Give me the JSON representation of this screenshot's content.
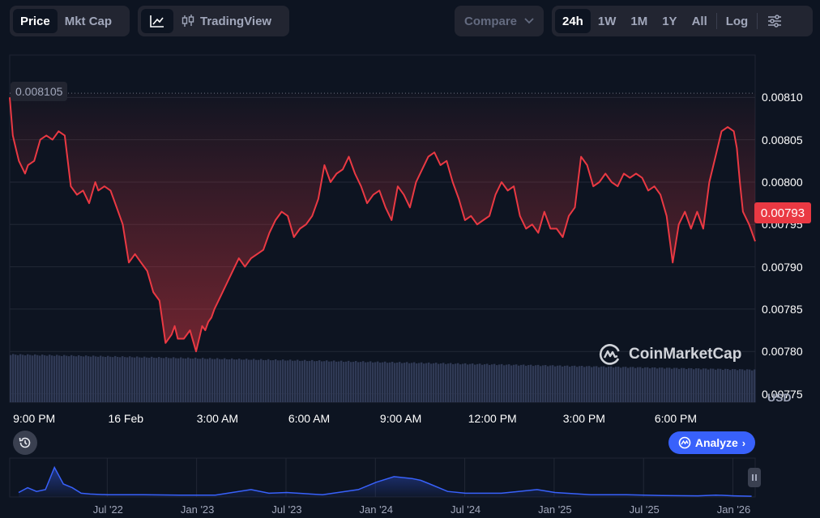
{
  "toolbar": {
    "metric_tabs": [
      "Price",
      "Mkt Cap"
    ],
    "tradingview_label": "TradingView",
    "compare_label": "Compare",
    "ranges": [
      "24h",
      "1W",
      "1M",
      "1Y",
      "All"
    ],
    "log_label": "Log"
  },
  "chart": {
    "watermark": "CoinMarketCap",
    "currency_label": "USD",
    "high_label": "0.008105",
    "current_price_label": "0.00793",
    "analyze_label": "Analyze",
    "colors": {
      "line": "#ea3943",
      "bg": "#0d1421",
      "volume": "#303a55",
      "overview": "#3861fb",
      "current_tag": "#ea3943"
    }
  },
  "chart_data": [
    {
      "type": "line",
      "x_tick_labels": [
        "9:00 PM",
        "16 Feb",
        "3:00 AM",
        "6:00 AM",
        "9:00 AM",
        "12:00 PM",
        "3:00 PM",
        "6:00 PM"
      ],
      "y_tick_labels": [
        "0.00810",
        "0.00805",
        "0.00800",
        "0.00795",
        "0.00790",
        "0.00785",
        "0.00780",
        "0.00775"
      ],
      "ylim": [
        0.00774,
        0.00815
      ],
      "x_range_hours": [
        -0.8,
        23.6
      ],
      "grid": true,
      "high_reference": 0.008105,
      "current": 0.00793,
      "series": [
        {
          "x": [
            -0.8,
            -0.7,
            -0.6,
            -0.5,
            -0.3,
            -0.2,
            0,
            0.2,
            0.4,
            0.6,
            0.8,
            1.0,
            1.2,
            1.4,
            1.6,
            1.8,
            2.0,
            2.1,
            2.3,
            2.5,
            2.7,
            2.9,
            3.1,
            3.3,
            3.5,
            3.7,
            3.9,
            4.1,
            4.3,
            4.5,
            4.6,
            4.7,
            4.9,
            5.1,
            5.3,
            5.5,
            5.6,
            5.7,
            5.8,
            5.9,
            6.1,
            6.3,
            6.5,
            6.7,
            6.9,
            7.1,
            7.3,
            7.5,
            7.7,
            7.9,
            8.1,
            8.3,
            8.5,
            8.7,
            8.9,
            9.1,
            9.3,
            9.5,
            9.7,
            9.9,
            10.1,
            10.3,
            10.5,
            10.7,
            10.9,
            11.1,
            11.3,
            11.5,
            11.7,
            11.9,
            12.1,
            12.3,
            12.5,
            12.7,
            12.9,
            13.1,
            13.3,
            13.5,
            13.7,
            13.9,
            14.1,
            14.3,
            14.5,
            14.7,
            14.9,
            15.1,
            15.3,
            15.5,
            15.7,
            15.9,
            16.1,
            16.3,
            16.5,
            16.7,
            16.9,
            17.1,
            17.3,
            17.5,
            17.7,
            17.9,
            18.1,
            18.3,
            18.5,
            18.7,
            18.9,
            19.1,
            19.3,
            19.5,
            19.7,
            19.9,
            20.1,
            20.3,
            20.5,
            20.7,
            20.9,
            21.1,
            21.3,
            21.5,
            21.7,
            21.9,
            22.1,
            22.3,
            22.5,
            22.7,
            22.9,
            23.0,
            23.1,
            23.2,
            23.4,
            23.6
          ],
          "y": [
            0.0081,
            0.008055,
            0.00804,
            0.008025,
            0.00801,
            0.00802,
            0.008025,
            0.00805,
            0.008055,
            0.00805,
            0.00806,
            0.008055,
            0.007995,
            0.007985,
            0.00799,
            0.007975,
            0.008,
            0.00799,
            0.007995,
            0.00799,
            0.00797,
            0.00795,
            0.007905,
            0.007915,
            0.007905,
            0.007895,
            0.00787,
            0.00786,
            0.00781,
            0.00782,
            0.00783,
            0.007815,
            0.007815,
            0.007825,
            0.0078,
            0.00783,
            0.007825,
            0.007835,
            0.00784,
            0.00785,
            0.007865,
            0.00788,
            0.007895,
            0.00791,
            0.0079,
            0.00791,
            0.007915,
            0.00792,
            0.00794,
            0.007955,
            0.007965,
            0.00796,
            0.007935,
            0.007945,
            0.00795,
            0.00796,
            0.00798,
            0.00802,
            0.008,
            0.00801,
            0.008015,
            0.00803,
            0.00801,
            0.007995,
            0.007975,
            0.007985,
            0.00799,
            0.00797,
            0.007955,
            0.007995,
            0.007985,
            0.00797,
            0.008,
            0.008015,
            0.00803,
            0.008035,
            0.00802,
            0.008025,
            0.008,
            0.00798,
            0.007955,
            0.00796,
            0.00795,
            0.007955,
            0.00796,
            0.007985,
            0.008,
            0.00799,
            0.007995,
            0.00796,
            0.007945,
            0.00795,
            0.00794,
            0.007965,
            0.007945,
            0.007945,
            0.007935,
            0.00796,
            0.00797,
            0.00803,
            0.00802,
            0.007995,
            0.008,
            0.00801,
            0.008,
            0.007995,
            0.00801,
            0.008005,
            0.00801,
            0.008005,
            0.00799,
            0.007995,
            0.007985,
            0.00796,
            0.007905,
            0.00795,
            0.007965,
            0.007945,
            0.007965,
            0.007945,
            0.008,
            0.00803,
            0.00806,
            0.008065,
            0.00806,
            0.00804,
            0.008,
            0.007965,
            0.00795,
            0.00793
          ]
        }
      ]
    },
    {
      "type": "area",
      "x_tick_labels": [
        "Jul '22",
        "Jan '23",
        "Jul '23",
        "Jan '24",
        "Jul '24",
        "Jan '25",
        "Jul '25",
        "Jan '26"
      ],
      "x": [
        2022.0,
        2022.05,
        2022.1,
        2022.15,
        2022.2,
        2022.25,
        2022.3,
        2022.35,
        2022.4,
        2022.5,
        2022.7,
        2022.9,
        2023.1,
        2023.3,
        2023.4,
        2023.5,
        2023.7,
        2023.9,
        2024.0,
        2024.1,
        2024.2,
        2024.25,
        2024.3,
        2024.4,
        2024.5,
        2024.7,
        2024.9,
        2025.0,
        2025.2,
        2025.4,
        2025.6,
        2025.8,
        2025.9,
        2026.0,
        2026.1
      ],
      "values": [
        0.12,
        0.25,
        0.15,
        0.2,
        0.8,
        0.35,
        0.25,
        0.1,
        0.08,
        0.06,
        0.06,
        0.05,
        0.05,
        0.2,
        0.1,
        0.12,
        0.06,
        0.2,
        0.4,
        0.55,
        0.5,
        0.45,
        0.35,
        0.15,
        0.1,
        0.1,
        0.2,
        0.12,
        0.06,
        0.06,
        0.04,
        0.03,
        0.05,
        0.03,
        0.02
      ]
    }
  ]
}
